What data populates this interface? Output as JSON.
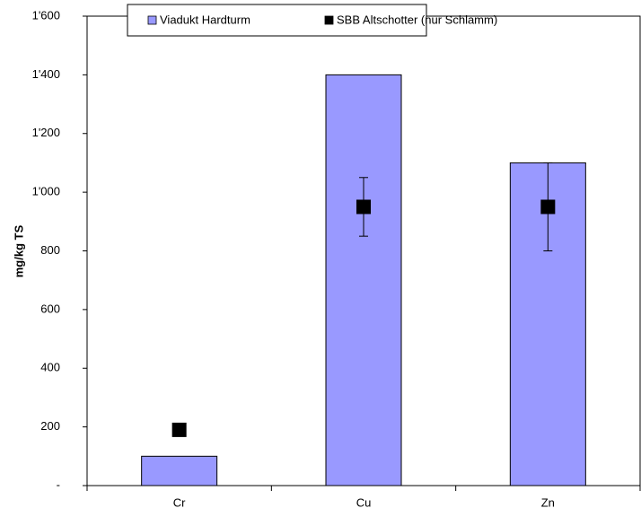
{
  "chart_data": {
    "type": "bar",
    "categories": [
      "Cr",
      "Cu",
      "Zn"
    ],
    "series": [
      {
        "name": "Viadukt Hardturm",
        "color": "#9999ff",
        "values": [
          100,
          1400,
          1100
        ]
      },
      {
        "name": "SBB Altschotter (nur Schlamm)",
        "type": "scatter",
        "color": "#000000",
        "values": [
          190,
          950,
          950
        ],
        "errors": [
          null,
          100,
          150
        ]
      }
    ],
    "ylabel": "mg/kg TS",
    "ylim": [
      0,
      1600
    ],
    "yticks": [
      {
        "value": 0,
        "label": "-"
      },
      200,
      400,
      600,
      800,
      {
        "value": 1000,
        "label": "1'000"
      },
      {
        "value": 1200,
        "label": "1'200"
      },
      {
        "value": 1400,
        "label": "1'400"
      },
      {
        "value": 1600,
        "label": "1'600"
      }
    ],
    "legend": "top"
  }
}
